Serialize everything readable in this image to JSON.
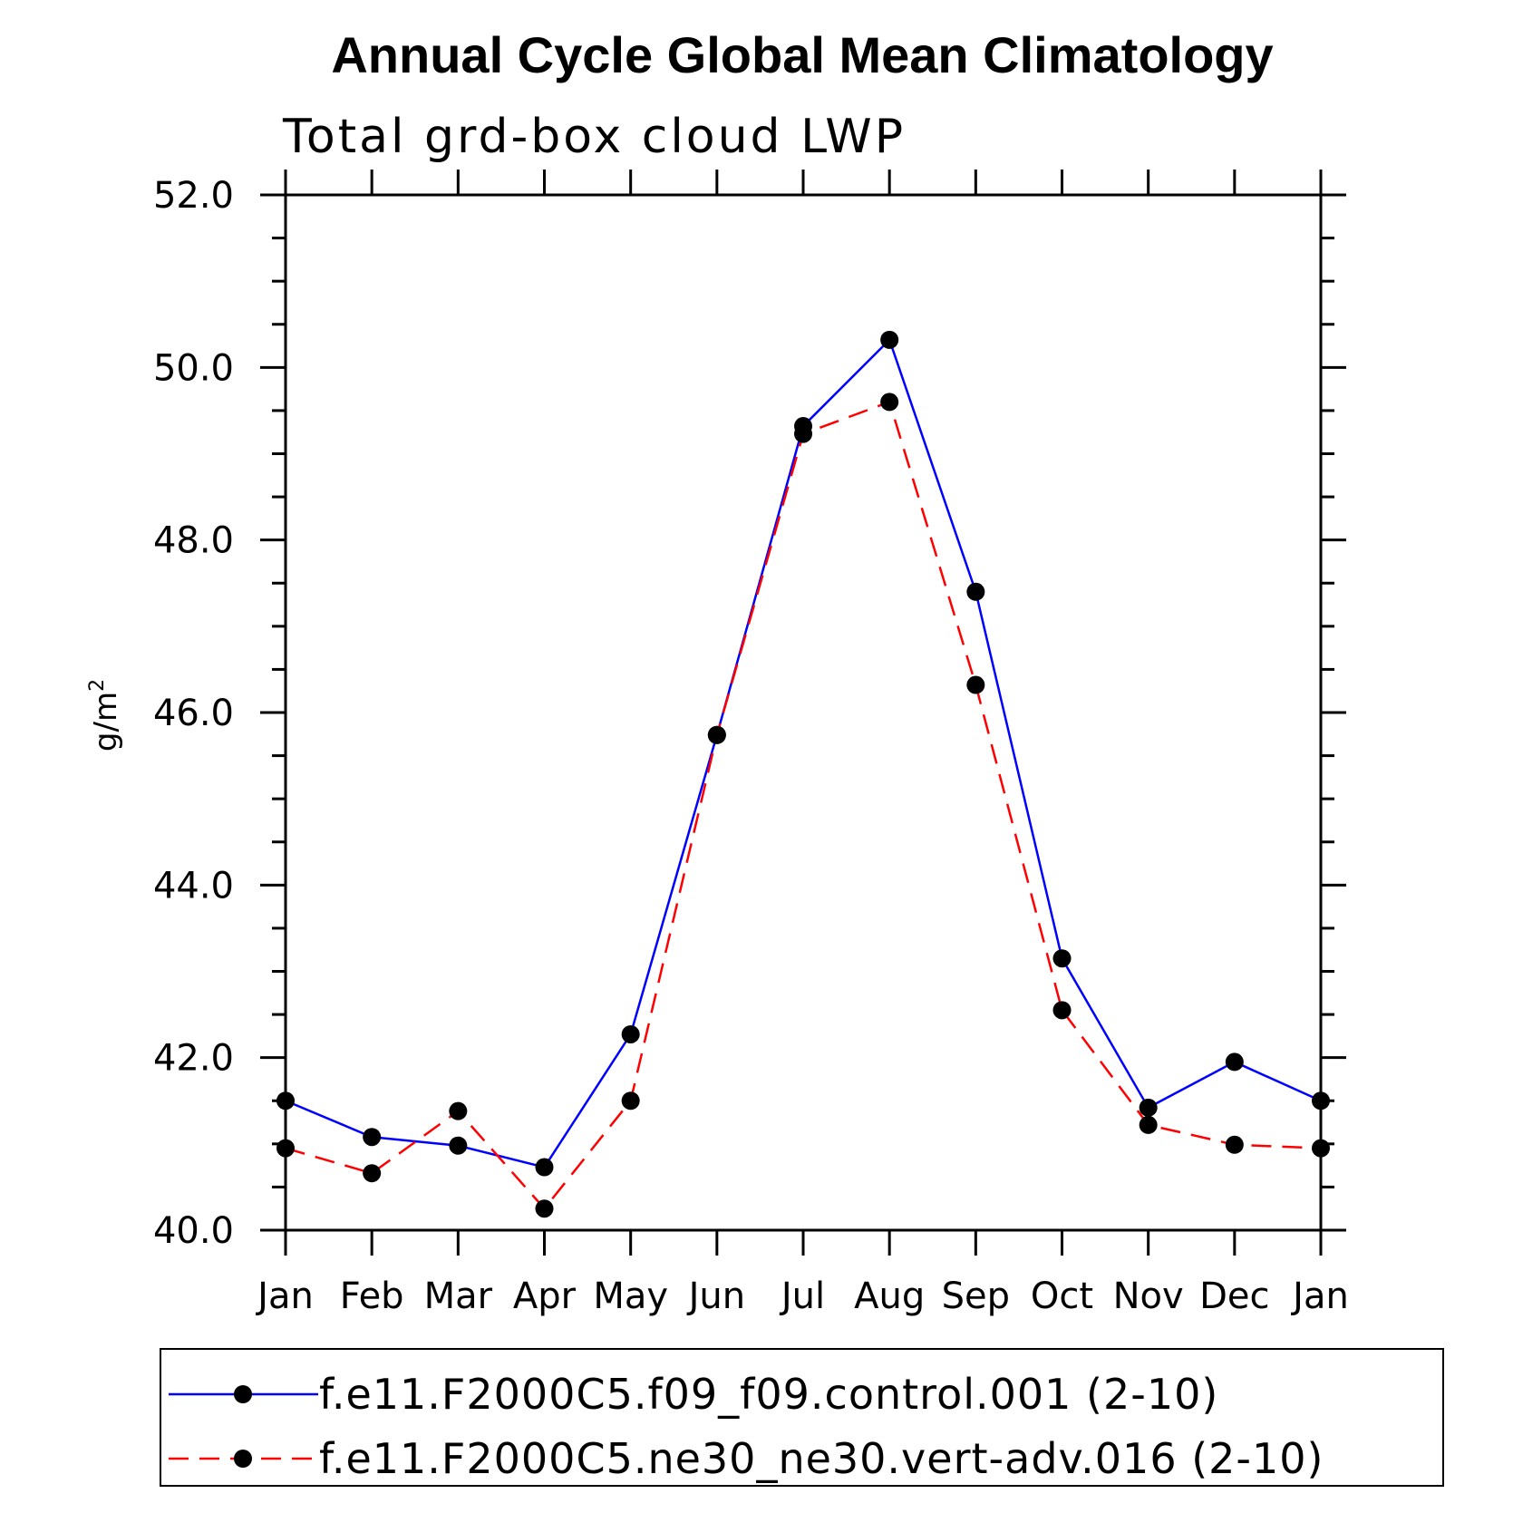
{
  "chart_data": {
    "type": "line",
    "title": "Annual Cycle Global Mean Climatology",
    "subtitle": "Total grd-box cloud LWP",
    "ylabel": "g/m",
    "ylabel_sup": "2",
    "xlabel": "",
    "categories": [
      "Jan",
      "Feb",
      "Mar",
      "Apr",
      "May",
      "Jun",
      "Jul",
      "Aug",
      "Sep",
      "Oct",
      "Nov",
      "Dec",
      "Jan"
    ],
    "ylim": [
      40.0,
      52.0
    ],
    "yticks": [
      40.0,
      42.0,
      44.0,
      46.0,
      48.0,
      50.0,
      52.0
    ],
    "ytick_labels": [
      "40.0",
      "42.0",
      "44.0",
      "46.0",
      "48.0",
      "50.0",
      "52.0"
    ],
    "grid": false,
    "legend_position": "bottom",
    "series": [
      {
        "name": "f.e11.F2000C5.f09_f09.control.001 (2-10)",
        "color": "#0000ff",
        "dash": "solid",
        "marker_color": "#000000",
        "values": [
          41.5,
          41.08,
          40.98,
          40.73,
          42.27,
          45.74,
          49.32,
          50.32,
          47.4,
          43.15,
          41.42,
          41.95,
          41.5
        ]
      },
      {
        "name": "f.e11.F2000C5.ne30_ne30.vert-adv.016 (2-10)",
        "color": "#ff0000",
        "dash": "dashed",
        "marker_color": "#000000",
        "values": [
          40.95,
          40.66,
          41.38,
          40.25,
          41.5,
          45.74,
          49.23,
          49.6,
          46.32,
          42.55,
          41.22,
          40.99,
          40.95
        ]
      }
    ]
  }
}
